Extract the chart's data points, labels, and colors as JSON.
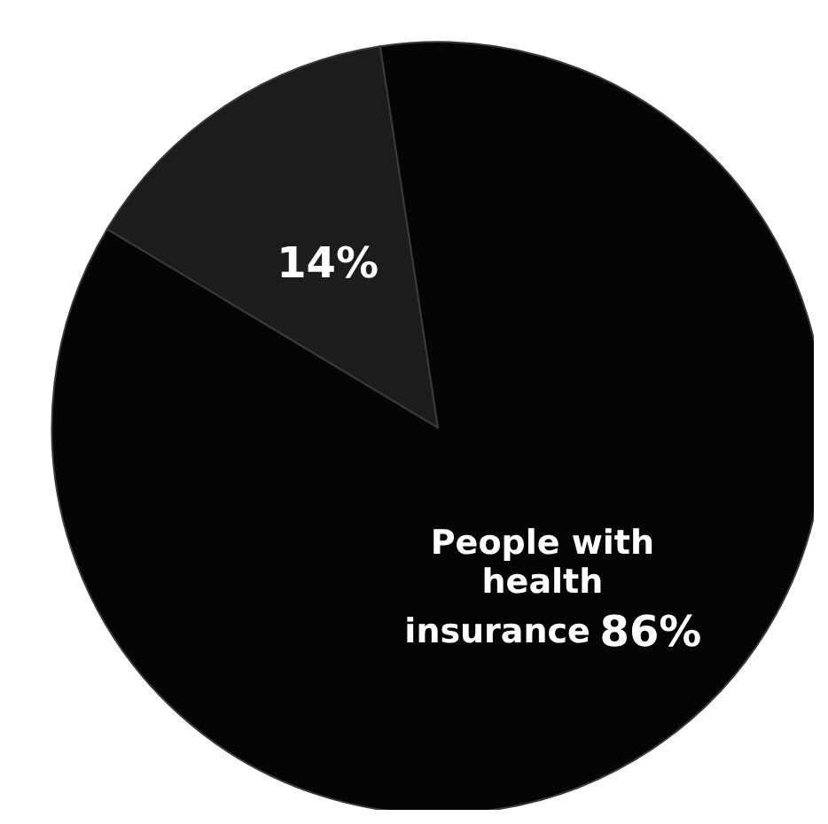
{
  "chart_data": {
    "type": "pie",
    "categories": [
      null,
      "People with health insurance"
    ],
    "values": [
      14,
      86
    ],
    "value_labels": [
      "14%",
      "86%"
    ],
    "colors": [
      "#1c1c1c",
      "#050505"
    ]
  }
}
